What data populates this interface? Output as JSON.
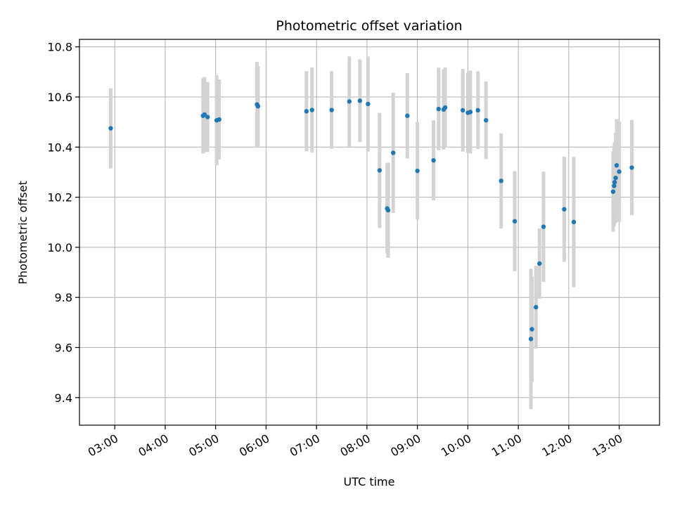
{
  "chart_data": {
    "type": "scatter",
    "title": "Photometric offset variation",
    "xlabel": "UTC time",
    "ylabel": "Photometric offset",
    "x_unit": "hours UTC",
    "xlim": [
      2.3,
      13.8
    ],
    "ylim": [
      9.29,
      10.83
    ],
    "x_ticks": [
      3,
      4,
      5,
      6,
      7,
      8,
      9,
      10,
      11,
      12,
      13
    ],
    "x_tick_labels": [
      "03:00",
      "04:00",
      "05:00",
      "06:00",
      "07:00",
      "08:00",
      "09:00",
      "10:00",
      "11:00",
      "12:00",
      "13:00"
    ],
    "y_ticks": [
      9.4,
      9.6,
      9.8,
      10.0,
      10.2,
      10.4,
      10.6,
      10.8
    ],
    "y_tick_labels": [
      "9.4",
      "9.6",
      "9.8",
      "10.0",
      "10.2",
      "10.4",
      "10.6",
      "10.8"
    ],
    "grid": true,
    "point_color": "#1f77b4",
    "errorbar_color": "#d3d3d3",
    "series": [
      {
        "x": [
          2.92,
          4.75,
          4.78,
          4.84,
          5.02,
          5.07,
          5.82,
          5.84,
          6.8,
          6.91,
          7.3,
          7.65,
          7.86,
          8.02,
          8.25,
          8.4,
          8.42,
          8.52,
          8.8,
          9.0,
          9.32,
          9.42,
          9.52,
          9.55,
          9.9,
          10.0,
          10.05,
          10.2,
          10.36,
          10.66,
          10.93,
          11.25,
          11.27,
          11.35,
          11.42,
          11.5,
          11.91,
          12.1,
          12.88,
          12.9,
          12.91,
          12.93,
          12.95,
          13.0,
          13.25
        ],
        "y": [
          10.475,
          10.525,
          10.53,
          10.52,
          10.507,
          10.51,
          10.57,
          10.563,
          10.543,
          10.548,
          10.548,
          10.582,
          10.585,
          10.572,
          10.307,
          10.155,
          10.148,
          10.377,
          10.525,
          10.305,
          10.347,
          10.552,
          10.55,
          10.558,
          10.547,
          10.537,
          10.54,
          10.547,
          10.507,
          10.265,
          10.104,
          9.634,
          9.673,
          9.761,
          9.935,
          10.082,
          10.152,
          10.101,
          10.222,
          10.245,
          10.26,
          10.277,
          10.327,
          10.302,
          10.318
        ],
        "yerr": [
          0.16,
          0.15,
          0.15,
          0.14,
          0.18,
          0.16,
          0.17,
          0.16,
          0.16,
          0.17,
          0.155,
          0.18,
          0.165,
          0.19,
          0.23,
          0.18,
          0.19,
          0.24,
          0.17,
          0.195,
          0.16,
          0.165,
          0.16,
          0.16,
          0.165,
          0.16,
          0.165,
          0.155,
          0.155,
          0.19,
          0.2,
          0.28,
          0.21,
          0.165,
          0.14,
          0.22,
          0.21,
          0.26,
          0.16,
          0.16,
          0.16,
          0.18,
          0.185,
          0.2,
          0.19
        ]
      }
    ]
  }
}
